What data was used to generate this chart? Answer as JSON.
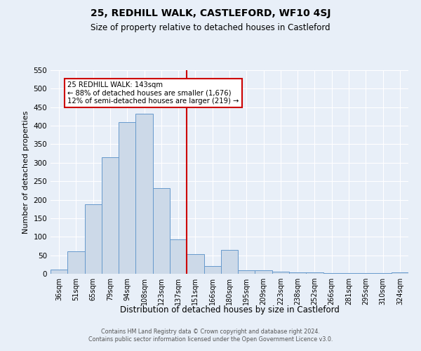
{
  "title": "25, REDHILL WALK, CASTLEFORD, WF10 4SJ",
  "subtitle": "Size of property relative to detached houses in Castleford",
  "xlabel": "Distribution of detached houses by size in Castleford",
  "ylabel": "Number of detached properties",
  "footer_line1": "Contains HM Land Registry data © Crown copyright and database right 2024.",
  "footer_line2": "Contains public sector information licensed under the Open Government Licence v3.0.",
  "categories": [
    "36sqm",
    "51sqm",
    "65sqm",
    "79sqm",
    "94sqm",
    "108sqm",
    "123sqm",
    "137sqm",
    "151sqm",
    "166sqm",
    "180sqm",
    "195sqm",
    "209sqm",
    "223sqm",
    "238sqm",
    "252sqm",
    "266sqm",
    "281sqm",
    "295sqm",
    "310sqm",
    "324sqm"
  ],
  "values": [
    12,
    60,
    188,
    315,
    410,
    432,
    232,
    93,
    53,
    20,
    65,
    10,
    9,
    6,
    4,
    4,
    2,
    2,
    2,
    2,
    4
  ],
  "bar_color_fill": "#ccd9e8",
  "bar_color_edge": "#6699cc",
  "background_color": "#e8eff8",
  "annotation_text_line1": "25 REDHILL WALK: 143sqm",
  "annotation_text_line2": "← 88% of detached houses are smaller (1,676)",
  "annotation_text_line3": "12% of semi-detached houses are larger (219) →",
  "annotation_box_color": "white",
  "annotation_box_edge": "#cc0000",
  "ylim": [
    0,
    550
  ],
  "yticks": [
    0,
    50,
    100,
    150,
    200,
    250,
    300,
    350,
    400,
    450,
    500,
    550
  ],
  "prop_line_index": 7.5,
  "title_fontsize": 10,
  "subtitle_fontsize": 8.5
}
